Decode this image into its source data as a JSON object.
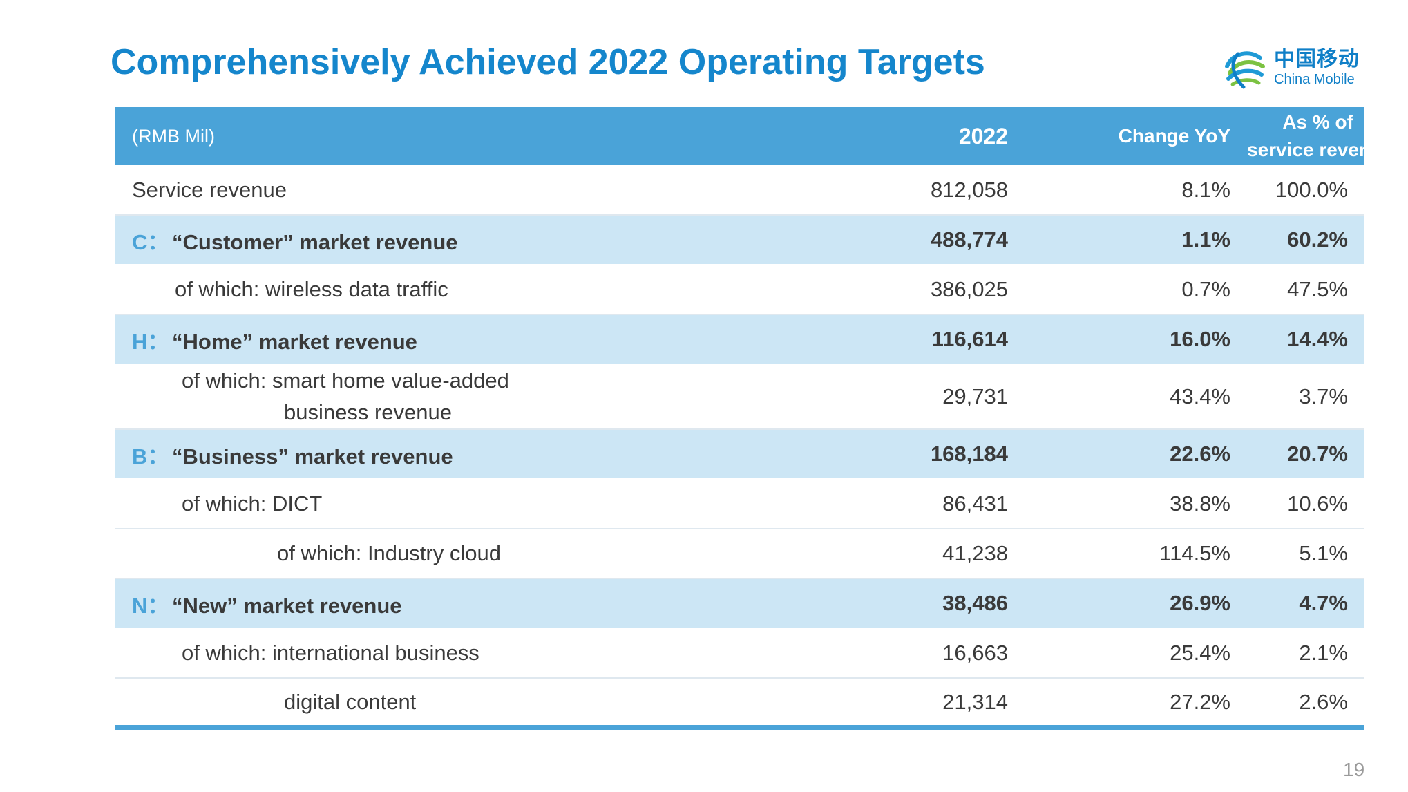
{
  "title": "Comprehensively Achieved 2022 Operating Targets",
  "logo": {
    "cn": "中国移动",
    "en": "China Mobile",
    "icon": "china-mobile-logo-icon",
    "color": "#0f7fc7"
  },
  "table": {
    "headers": {
      "label": "(RMB Mil)",
      "year": "2022",
      "yoy": "Change YoY",
      "pct_line1": "As % of",
      "pct_line2": "service revenue"
    },
    "rows": [
      {
        "letter": "",
        "label": "Service revenue",
        "value": "812,058",
        "yoy": "8.1%",
        "pct": "100.0%"
      },
      {
        "letter": "C：",
        "label": "“Customer” market revenue",
        "value": "488,774",
        "yoy": "1.1%",
        "pct": "60.2%"
      },
      {
        "letter": "",
        "label": "of which: wireless data traffic",
        "value": "386,025",
        "yoy": "0.7%",
        "pct": "47.5%"
      },
      {
        "letter": "H：",
        "label": "“Home” market revenue",
        "value": "116,614",
        "yoy": "16.0%",
        "pct": "14.4%"
      },
      {
        "letter": "",
        "label": "of which: smart home value-added",
        "label2": "business revenue",
        "value": "29,731",
        "yoy": "43.4%",
        "pct": "3.7%"
      },
      {
        "letter": "B：",
        "label": "“Business” market revenue",
        "value": "168,184",
        "yoy": "22.6%",
        "pct": "20.7%"
      },
      {
        "letter": "",
        "label": "of which: DICT",
        "value": "86,431",
        "yoy": "38.8%",
        "pct": "10.6%"
      },
      {
        "letter": "",
        "label": "of which: Industry cloud",
        "value": "41,238",
        "yoy": "114.5%",
        "pct": "5.1%"
      },
      {
        "letter": "N：",
        "label": "“New” market revenue",
        "value": "38,486",
        "yoy": "26.9%",
        "pct": "4.7%"
      },
      {
        "letter": "",
        "label": "of which: international business",
        "value": "16,663",
        "yoy": "25.4%",
        "pct": "2.1%"
      },
      {
        "letter": "",
        "label": "digital content",
        "value": "21,314",
        "yoy": "27.2%",
        "pct": "2.6%"
      }
    ]
  },
  "page_number": "19",
  "colors": {
    "title": "#1586cc",
    "header_bg": "#4aa3d8",
    "segment_bg": "#cce6f5",
    "text": "#3a3a3a"
  }
}
